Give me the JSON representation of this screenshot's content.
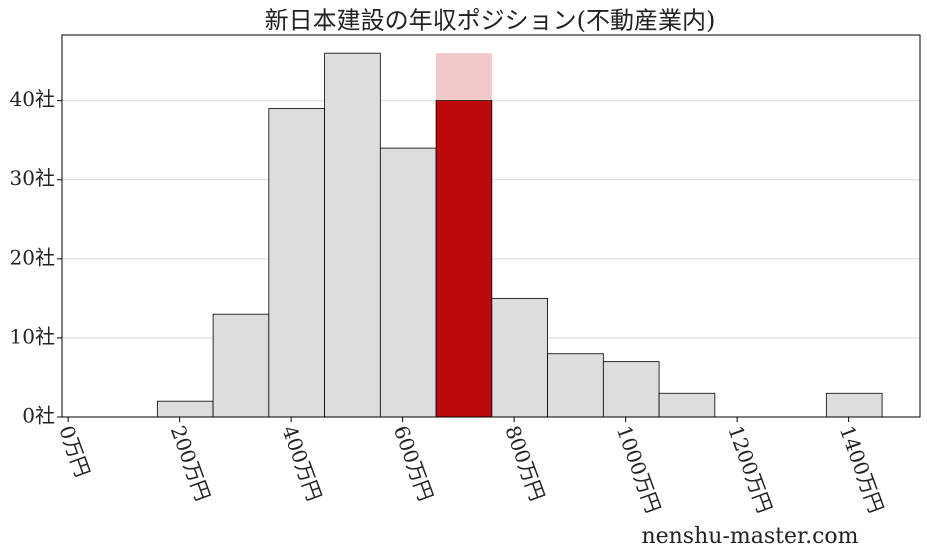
{
  "chart_data": {
    "type": "histogram",
    "title": "新日本建設の年収ポジション(不動産業内)",
    "bins": [
      160,
      260,
      360,
      460,
      560,
      660,
      760,
      860,
      960,
      1060,
      1160,
      1260,
      1360,
      1460
    ],
    "values": [
      2,
      13,
      39,
      46,
      34,
      40,
      15,
      8,
      7,
      3,
      0,
      0,
      3
    ],
    "color": "#dcdddf",
    "highlight_index": 5,
    "highlight_color": "#be0a0a",
    "highlight_top": 46,
    "highlight_band_color": "#f0c8c8",
    "xlim": [
      -11,
      1528
    ],
    "ylim": [
      0,
      48.3
    ],
    "xticks": [
      {
        "value": 0,
        "label": "0万円"
      },
      {
        "value": 200,
        "label": "200万円"
      },
      {
        "value": 400,
        "label": "400万円"
      },
      {
        "value": 600,
        "label": "600万円"
      },
      {
        "value": 800,
        "label": "800万円"
      },
      {
        "value": 1000,
        "label": "1000万円"
      },
      {
        "value": 1200,
        "label": "1200万円"
      },
      {
        "value": 1400,
        "label": "1400万円"
      }
    ],
    "yticks": [
      {
        "value": 0,
        "label": "0社"
      },
      {
        "value": 10,
        "label": "10社"
      },
      {
        "value": 20,
        "label": "20社"
      },
      {
        "value": 30,
        "label": "30社"
      },
      {
        "value": 40,
        "label": "40社"
      }
    ],
    "grid": true,
    "watermark": "nenshu-master.com"
  }
}
